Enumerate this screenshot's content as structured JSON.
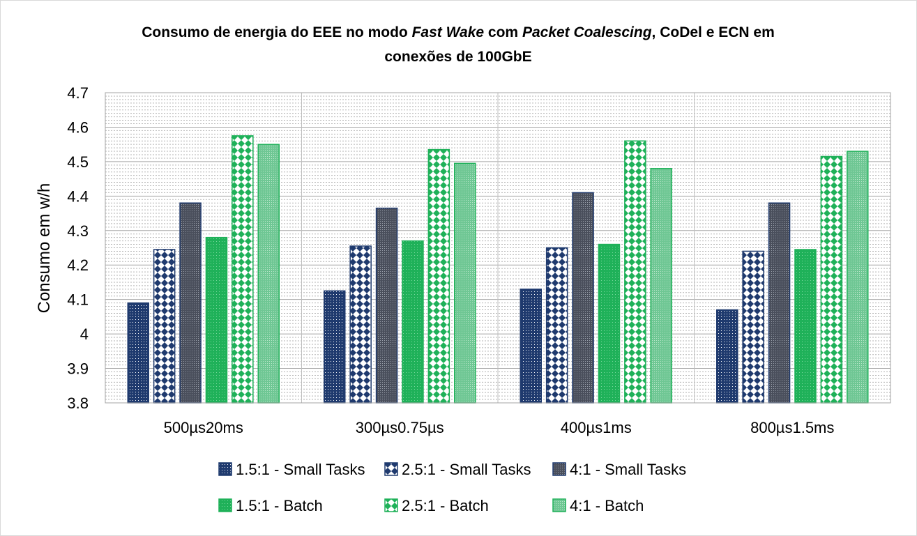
{
  "chart_data": {
    "type": "bar",
    "title_parts": [
      {
        "text": "Consumo de energia do EEE no modo ",
        "italic": false
      },
      {
        "text": "Fast Wake",
        "italic": true
      },
      {
        "text": " com ",
        "italic": false
      },
      {
        "text": "Packet Coalescing",
        "italic": true
      },
      {
        "text": ", CoDel e ECN em",
        "italic": false
      }
    ],
    "title_line2": "conexões de 100GbE",
    "ylabel": "Consumo em w/h",
    "ylim": [
      3.8,
      4.7
    ],
    "yticks": [
      3.8,
      3.9,
      4,
      4.1,
      4.2,
      4.3,
      4.4,
      4.5,
      4.6,
      4.7
    ],
    "ytick_labels": [
      "3.8",
      "3.9",
      "4",
      "4.1",
      "4.2",
      "4.3",
      "4.4",
      "4.5",
      "4.6",
      "4.7"
    ],
    "minor_step": 0.01,
    "grid": true,
    "legend_position": "bottom",
    "categories": [
      "500µs20ms",
      "300µs0.75µs",
      "400µs1ms",
      "800µs1.5ms"
    ],
    "series": [
      {
        "name": "1.5:1 - Small Tasks",
        "values": [
          4.09,
          4.125,
          4.13,
          4.07
        ],
        "color": "#1f3a6e",
        "pattern": "dots-dark"
      },
      {
        "name": "2.5:1 - Small Tasks",
        "values": [
          4.245,
          4.255,
          4.25,
          4.24
        ],
        "color": "#1f3a6e",
        "pattern": "checker-dark"
      },
      {
        "name": "4:1 - Small Tasks",
        "values": [
          4.38,
          4.365,
          4.41,
          4.38
        ],
        "color": "#1f3a6e",
        "pattern": "stipple-dark"
      },
      {
        "name": "1.5:1 - Batch",
        "values": [
          4.28,
          4.27,
          4.26,
          4.245
        ],
        "color": "#1fb159",
        "pattern": "dots-green"
      },
      {
        "name": "2.5:1 - Batch",
        "values": [
          4.575,
          4.535,
          4.56,
          4.515
        ],
        "color": "#1fb159",
        "pattern": "checker-green"
      },
      {
        "name": "4:1 - Batch",
        "values": [
          4.55,
          4.495,
          4.48,
          4.53
        ],
        "color": "#1fb159",
        "pattern": "stipple-green"
      }
    ]
  }
}
